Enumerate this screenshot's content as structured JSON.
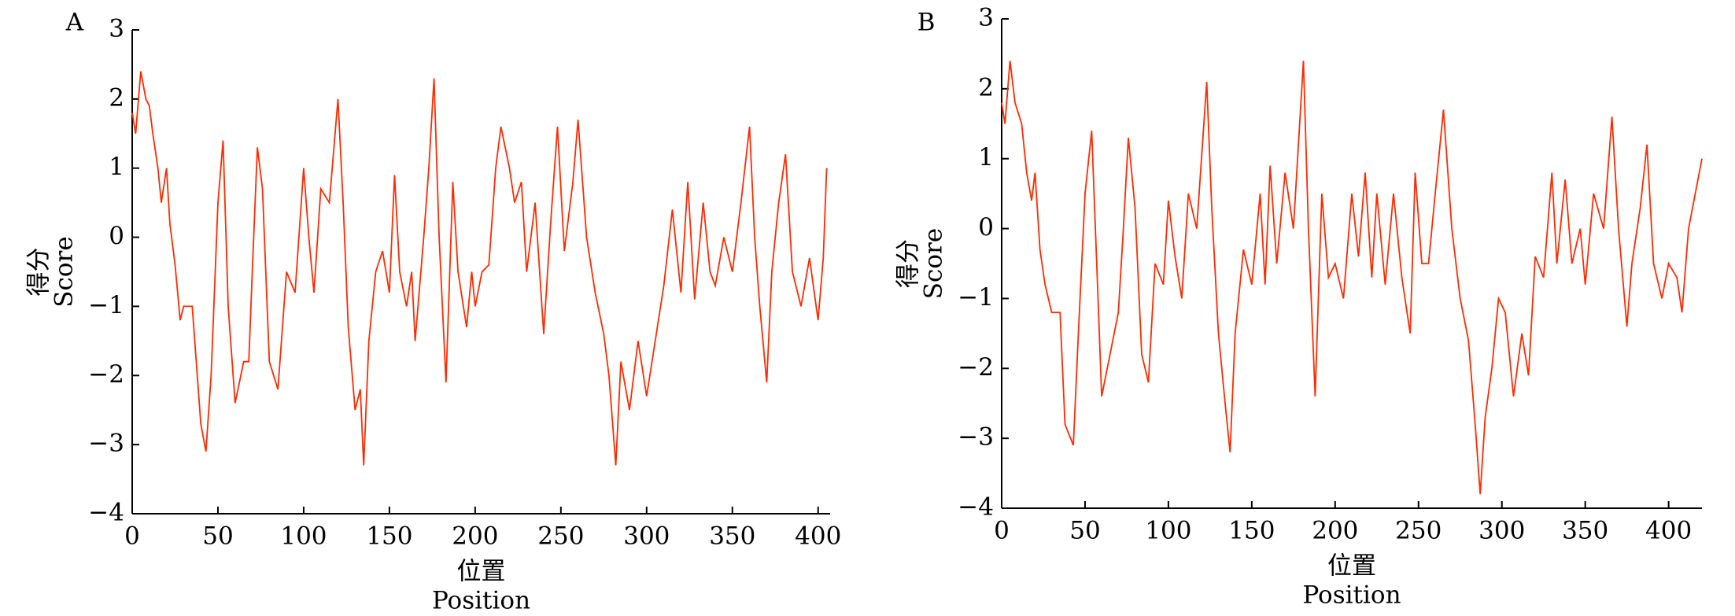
{
  "chart_data": [
    {
      "type": "line",
      "panel_label": "A",
      "ylabel": [
        "得分",
        "Score"
      ],
      "xlabel": [
        "位置",
        "Position"
      ],
      "color": "#ff2a00",
      "xlim": [
        0,
        407
      ],
      "ylim": [
        -4,
        3
      ],
      "xticks": [
        0,
        50,
        100,
        150,
        200,
        250,
        300,
        350,
        400
      ],
      "yticks": [
        {
          "value": -4,
          "label": "−4"
        },
        {
          "value": -3,
          "label": "−3"
        },
        {
          "value": -2,
          "label": "−2"
        },
        {
          "value": -1,
          "label": "−1"
        },
        0,
        1,
        2,
        3
      ],
      "x": [
        0,
        2,
        5,
        8,
        10,
        12,
        15,
        17,
        20,
        22,
        25,
        28,
        30,
        35,
        40,
        43,
        46,
        50,
        53,
        56,
        60,
        65,
        68,
        70,
        73,
        76,
        80,
        85,
        90,
        95,
        100,
        103,
        106,
        110,
        115,
        120,
        123,
        126,
        130,
        133,
        135,
        138,
        142,
        146,
        150,
        153,
        156,
        160,
        163,
        165,
        170,
        173,
        176,
        179,
        183,
        187,
        190,
        195,
        198,
        200,
        204,
        208,
        212,
        215,
        220,
        223,
        227,
        230,
        235,
        240,
        244,
        248,
        252,
        257,
        260,
        265,
        270,
        275,
        278,
        282,
        285,
        290,
        295,
        300,
        305,
        310,
        315,
        320,
        324,
        328,
        333,
        337,
        340,
        345,
        350,
        355,
        360,
        363,
        366,
        370,
        373,
        377,
        381,
        385,
        390,
        395,
        400,
        403,
        405
      ],
      "values": [
        1.8,
        1.5,
        2.4,
        2.0,
        1.9,
        1.5,
        1.0,
        0.5,
        1.0,
        0.2,
        -0.4,
        -1.2,
        -1.0,
        -1.0,
        -2.7,
        -3.1,
        -2.0,
        0.5,
        1.4,
        -1.0,
        -2.4,
        -1.8,
        -1.8,
        -0.5,
        1.3,
        0.7,
        -1.8,
        -2.2,
        -0.5,
        -0.8,
        1.0,
        0.0,
        -0.8,
        0.7,
        0.5,
        2.0,
        0.5,
        -1.3,
        -2.5,
        -2.2,
        -3.3,
        -1.5,
        -0.5,
        -0.2,
        -0.8,
        0.9,
        -0.5,
        -1.0,
        -0.5,
        -1.5,
        0.0,
        1.0,
        2.3,
        0.0,
        -2.1,
        0.8,
        -0.5,
        -1.3,
        -0.5,
        -1.0,
        -0.5,
        -0.4,
        1.0,
        1.6,
        1.0,
        0.5,
        0.8,
        -0.5,
        0.5,
        -1.4,
        0.2,
        1.6,
        -0.2,
        0.8,
        1.7,
        0.0,
        -0.8,
        -1.4,
        -2.0,
        -3.3,
        -1.8,
        -2.5,
        -1.5,
        -2.3,
        -1.5,
        -0.7,
        0.4,
        -0.8,
        0.8,
        -0.9,
        0.5,
        -0.5,
        -0.7,
        0.0,
        -0.5,
        0.5,
        1.6,
        0.0,
        -1.0,
        -2.1,
        -0.5,
        0.5,
        1.2,
        -0.5,
        -1.0,
        -0.3,
        -1.2,
        -0.3,
        1.0
      ]
    },
    {
      "type": "line",
      "panel_label": "B",
      "ylabel": [
        "得分",
        "Score"
      ],
      "xlabel": [
        "位置",
        "Position"
      ],
      "color": "#ff2a00",
      "xlim": [
        0,
        420
      ],
      "ylim": [
        -4,
        3
      ],
      "xticks": [
        0,
        50,
        100,
        150,
        200,
        250,
        300,
        350,
        400
      ],
      "yticks": [
        {
          "value": -4,
          "label": "−4"
        },
        {
          "value": -3,
          "label": "−3"
        },
        {
          "value": -2,
          "label": "−2"
        },
        {
          "value": -1,
          "label": "−1"
        },
        0,
        1,
        2,
        3
      ],
      "x": [
        0,
        2,
        5,
        8,
        12,
        15,
        18,
        20,
        23,
        26,
        30,
        35,
        38,
        43,
        46,
        50,
        54,
        57,
        60,
        65,
        70,
        73,
        76,
        80,
        84,
        88,
        92,
        97,
        100,
        104,
        108,
        112,
        117,
        123,
        126,
        130,
        134,
        137,
        140,
        145,
        150,
        155,
        158,
        161,
        165,
        170,
        175,
        181,
        184,
        188,
        192,
        196,
        200,
        205,
        210,
        214,
        218,
        222,
        225,
        230,
        235,
        240,
        245,
        248,
        252,
        256,
        260,
        265,
        270,
        275,
        280,
        284,
        287,
        290,
        294,
        298,
        302,
        307,
        312,
        316,
        320,
        325,
        330,
        333,
        338,
        342,
        347,
        350,
        355,
        361,
        366,
        370,
        375,
        378,
        383,
        387,
        391,
        396,
        400,
        405,
        408,
        412,
        420
      ],
      "values": [
        1.8,
        1.5,
        2.4,
        1.8,
        1.5,
        0.8,
        0.4,
        0.8,
        -0.3,
        -0.8,
        -1.2,
        -1.2,
        -2.8,
        -3.1,
        -1.5,
        0.5,
        1.4,
        -0.5,
        -2.4,
        -1.8,
        -1.2,
        0.0,
        1.3,
        0.3,
        -1.8,
        -2.2,
        -0.5,
        -0.8,
        0.4,
        -0.4,
        -1.0,
        0.5,
        0.0,
        2.1,
        0.3,
        -1.5,
        -2.5,
        -3.2,
        -1.5,
        -0.3,
        -0.8,
        0.5,
        -0.8,
        0.9,
        -0.5,
        0.8,
        0.0,
        2.4,
        0.0,
        -2.4,
        0.5,
        -0.7,
        -0.5,
        -1.0,
        0.5,
        -0.4,
        0.8,
        -0.7,
        0.5,
        -0.8,
        0.5,
        -0.7,
        -1.5,
        0.8,
        -0.5,
        -0.5,
        0.5,
        1.7,
        0.0,
        -1.0,
        -1.6,
        -2.8,
        -3.8,
        -2.7,
        -2.0,
        -1.0,
        -1.2,
        -2.4,
        -1.5,
        -2.1,
        -0.4,
        -0.7,
        0.8,
        -0.5,
        0.7,
        -0.5,
        0.0,
        -0.8,
        0.5,
        0.0,
        1.6,
        0.0,
        -1.4,
        -0.5,
        0.3,
        1.2,
        -0.5,
        -1.0,
        -0.5,
        -0.7,
        -1.2,
        0.0,
        1.0
      ]
    }
  ]
}
